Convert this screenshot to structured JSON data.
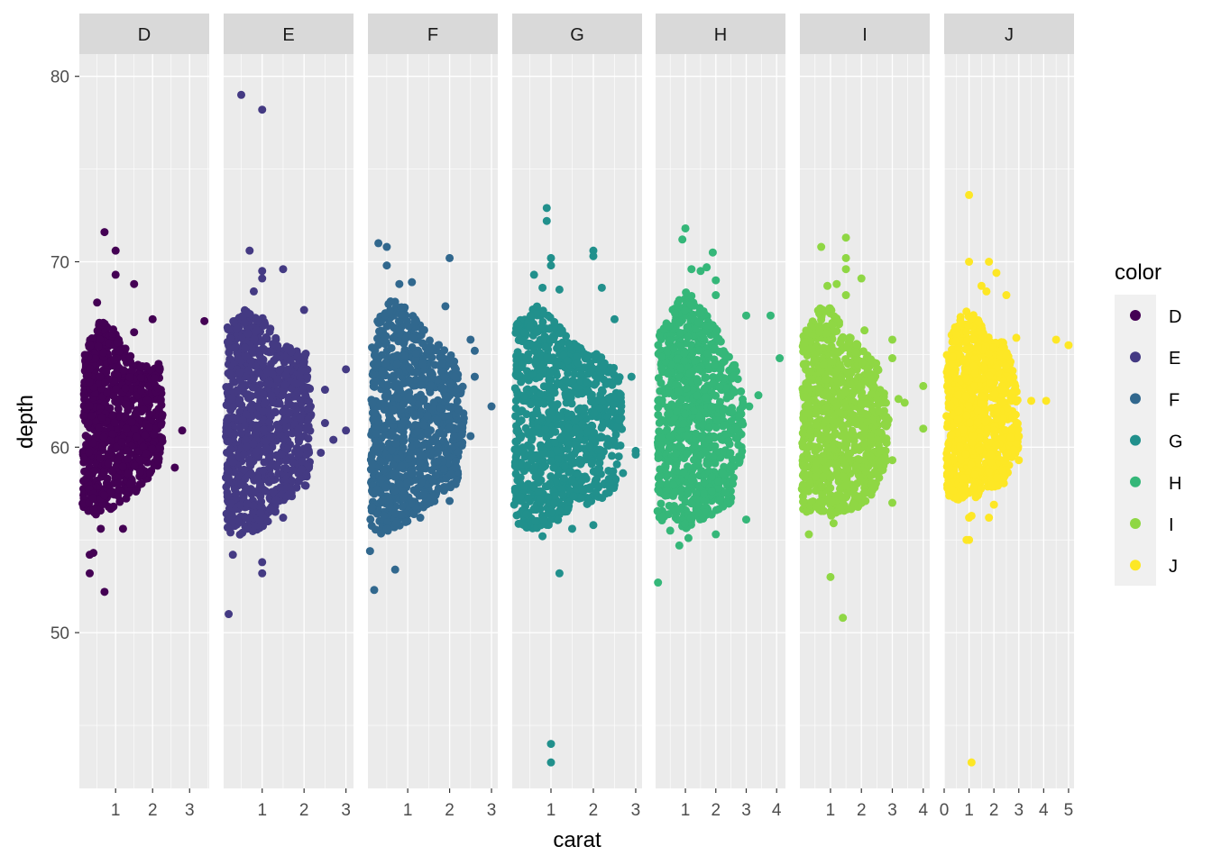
{
  "chart_data": {
    "type": "scatter",
    "facet_by": "color",
    "xlabel": "carat",
    "ylabel": "depth",
    "ylim": [
      41.6,
      81.2
    ],
    "y_ticks": [
      50,
      60,
      70,
      80
    ],
    "grid": true,
    "legend": {
      "title": "color",
      "placement": "right"
    },
    "facets": [
      {
        "label": "D",
        "color": "#440154",
        "xlim": [
          0.02,
          3.53
        ],
        "x_ticks": [
          1,
          2,
          3
        ],
        "core_region": [
          [
            0.1,
            56.5
          ],
          [
            0.15,
            65
          ],
          [
            0.5,
            67
          ],
          [
            0.9,
            66.5
          ],
          [
            1.2,
            65.5
          ],
          [
            1.6,
            64.5
          ],
          [
            2.2,
            64.5
          ],
          [
            2.3,
            61
          ],
          [
            2.2,
            59
          ],
          [
            1.5,
            57.5
          ],
          [
            1.0,
            56.8
          ],
          [
            0.5,
            56.3
          ]
        ],
        "points": [
          [
            0.7,
            71.6
          ],
          [
            1.0,
            70.6
          ],
          [
            1.0,
            69.3
          ],
          [
            1.5,
            68.8
          ],
          [
            2.0,
            66.9
          ],
          [
            3.4,
            66.8
          ],
          [
            2.8,
            60.9
          ],
          [
            2.6,
            58.9
          ],
          [
            0.3,
            54.2
          ],
          [
            0.4,
            54.3
          ],
          [
            0.3,
            53.2
          ],
          [
            0.7,
            52.2
          ],
          [
            0.6,
            55.6
          ],
          [
            1.2,
            55.6
          ],
          [
            0.5,
            67.8
          ],
          [
            1.5,
            66.2
          ]
        ]
      },
      {
        "label": "E",
        "color": "#443A83",
        "xlim": [
          0.08,
          3.18
        ],
        "x_ticks": [
          1,
          2,
          3
        ],
        "core_region": [
          [
            0.12,
            55.5
          ],
          [
            0.15,
            66.5
          ],
          [
            0.6,
            67.5
          ],
          [
            1.0,
            67
          ],
          [
            1.5,
            65.5
          ],
          [
            2.1,
            65
          ],
          [
            2.2,
            61
          ],
          [
            2.1,
            58
          ],
          [
            1.5,
            57
          ],
          [
            1.0,
            55.5
          ],
          [
            0.5,
            55.2
          ]
        ],
        "points": [
          [
            0.5,
            79.0
          ],
          [
            1.0,
            78.2
          ],
          [
            0.7,
            70.6
          ],
          [
            1.0,
            69.5
          ],
          [
            1.0,
            69.1
          ],
          [
            1.5,
            69.6
          ],
          [
            2.0,
            67.4
          ],
          [
            3.0,
            64.2
          ],
          [
            2.5,
            63.1
          ],
          [
            2.5,
            61.3
          ],
          [
            2.7,
            60.4
          ],
          [
            3.0,
            60.9
          ],
          [
            2.4,
            59.7
          ],
          [
            0.2,
            51.0
          ],
          [
            1.0,
            53.2
          ],
          [
            1.0,
            53.8
          ],
          [
            0.3,
            54.2
          ],
          [
            0.6,
            56.2
          ],
          [
            1.5,
            56.2
          ],
          [
            0.8,
            68.4
          ]
        ]
      },
      {
        "label": "F",
        "color": "#31688E",
        "xlim": [
          0.05,
          3.15
        ],
        "x_ticks": [
          1,
          2,
          3
        ],
        "core_region": [
          [
            0.1,
            55.5
          ],
          [
            0.15,
            66.5
          ],
          [
            0.6,
            68
          ],
          [
            1.0,
            67.5
          ],
          [
            1.5,
            66
          ],
          [
            2.3,
            64.5
          ],
          [
            2.35,
            61
          ],
          [
            2.2,
            58
          ],
          [
            1.5,
            56.8
          ],
          [
            1.0,
            56
          ],
          [
            0.5,
            55.2
          ]
        ],
        "points": [
          [
            0.3,
            71.0
          ],
          [
            0.5,
            70.8
          ],
          [
            2.0,
            70.2
          ],
          [
            0.5,
            69.8
          ],
          [
            0.8,
            68.8
          ],
          [
            1.1,
            68.9
          ],
          [
            1.9,
            67.6
          ],
          [
            2.5,
            65.8
          ],
          [
            2.6,
            65.2
          ],
          [
            2.6,
            63.8
          ],
          [
            3.0,
            62.2
          ],
          [
            2.5,
            60.6
          ],
          [
            2.0,
            57.1
          ],
          [
            0.1,
            54.4
          ],
          [
            0.2,
            52.3
          ],
          [
            0.7,
            53.4
          ],
          [
            0.5,
            55.6
          ],
          [
            1.3,
            56.2
          ]
        ]
      },
      {
        "label": "G",
        "color": "#21908C",
        "xlim": [
          0.085,
          3.15
        ],
        "x_ticks": [
          1,
          2,
          3
        ],
        "core_region": [
          [
            0.13,
            56
          ],
          [
            0.15,
            66.5
          ],
          [
            0.6,
            67.8
          ],
          [
            1.0,
            67
          ],
          [
            1.6,
            65.5
          ],
          [
            2.6,
            64.5
          ],
          [
            2.7,
            61
          ],
          [
            2.5,
            57.5
          ],
          [
            1.5,
            56.5
          ],
          [
            1.0,
            55.8
          ],
          [
            0.5,
            55.5
          ]
        ],
        "points": [
          [
            0.9,
            72.9
          ],
          [
            0.9,
            72.2
          ],
          [
            1.0,
            70.2
          ],
          [
            1.0,
            69.8
          ],
          [
            2.0,
            70.6
          ],
          [
            2.0,
            70.3
          ],
          [
            0.6,
            69.3
          ],
          [
            0.8,
            68.6
          ],
          [
            2.2,
            68.6
          ],
          [
            2.5,
            66.9
          ],
          [
            1.2,
            68.5
          ],
          [
            2.9,
            63.8
          ],
          [
            3.0,
            59.8
          ],
          [
            3.0,
            59.6
          ],
          [
            2.6,
            59.5
          ],
          [
            2.7,
            58.6
          ],
          [
            1.2,
            53.2
          ],
          [
            1.0,
            44.0
          ],
          [
            1.0,
            43.0
          ],
          [
            1.5,
            55.6
          ],
          [
            0.8,
            55.2
          ],
          [
            2.0,
            55.8
          ]
        ]
      },
      {
        "label": "H",
        "color": "#35B779",
        "xlim": [
          0.02,
          4.29
        ],
        "x_ticks": [
          1,
          2,
          3,
          4
        ],
        "core_region": [
          [
            0.08,
            56
          ],
          [
            0.1,
            66
          ],
          [
            0.6,
            67.5
          ],
          [
            1.0,
            68.5
          ],
          [
            1.6,
            67.5
          ],
          [
            2.2,
            66
          ],
          [
            2.9,
            63.5
          ],
          [
            2.9,
            60
          ],
          [
            2.5,
            57
          ],
          [
            1.5,
            56
          ],
          [
            1.0,
            55.6
          ],
          [
            0.5,
            56
          ]
        ],
        "points": [
          [
            1.0,
            71.8
          ],
          [
            0.9,
            71.2
          ],
          [
            1.9,
            70.5
          ],
          [
            1.5,
            69.5
          ],
          [
            2.0,
            69.0
          ],
          [
            2.0,
            68.2
          ],
          [
            3.0,
            67.1
          ],
          [
            3.8,
            67.1
          ],
          [
            4.1,
            64.8
          ],
          [
            3.4,
            62.8
          ],
          [
            3.1,
            62.2
          ],
          [
            2.5,
            61.4
          ],
          [
            2.3,
            61.2
          ],
          [
            3.0,
            56.1
          ],
          [
            0.1,
            52.7
          ],
          [
            0.8,
            54.7
          ],
          [
            0.5,
            55.5
          ],
          [
            1.1,
            55.1
          ],
          [
            2.0,
            55.3
          ],
          [
            1.2,
            69.6
          ],
          [
            1.7,
            69.7
          ]
        ]
      },
      {
        "label": "I",
        "color": "#8FD744",
        "xlim": [
          0.01,
          4.21
        ],
        "x_ticks": [
          1,
          2,
          3,
          4
        ],
        "core_region": [
          [
            0.07,
            56.5
          ],
          [
            0.1,
            66
          ],
          [
            0.6,
            67.5
          ],
          [
            1.0,
            67.5
          ],
          [
            1.6,
            66
          ],
          [
            2.5,
            64.5
          ],
          [
            2.9,
            62
          ],
          [
            2.8,
            59
          ],
          [
            2.2,
            57
          ],
          [
            1.5,
            56.5
          ],
          [
            1.0,
            56.2
          ],
          [
            0.5,
            56.5
          ]
        ],
        "points": [
          [
            1.5,
            71.3
          ],
          [
            0.7,
            70.8
          ],
          [
            1.5,
            70.2
          ],
          [
            1.5,
            69.6
          ],
          [
            2.0,
            69.1
          ],
          [
            0.9,
            68.7
          ],
          [
            1.2,
            68.8
          ],
          [
            1.5,
            68.2
          ],
          [
            2.1,
            66.3
          ],
          [
            3.0,
            65.8
          ],
          [
            3.0,
            64.8
          ],
          [
            2.5,
            64.2
          ],
          [
            3.2,
            62.6
          ],
          [
            3.4,
            62.4
          ],
          [
            4.0,
            63.3
          ],
          [
            4.0,
            61.0
          ],
          [
            3.0,
            59.3
          ],
          [
            3.0,
            57.0
          ],
          [
            1.0,
            53.0
          ],
          [
            1.4,
            50.8
          ],
          [
            0.3,
            55.3
          ],
          [
            1.1,
            55.9
          ],
          [
            1.0,
            56.5
          ]
        ]
      },
      {
        "label": "J",
        "color": "#FDE725",
        "xlim": [
          0,
          5.22
        ],
        "x_ticks": [
          0,
          1,
          2,
          3,
          4,
          5
        ],
        "core_region": [
          [
            0.07,
            57.2
          ],
          [
            0.1,
            65.5
          ],
          [
            0.6,
            67
          ],
          [
            1.0,
            67.5
          ],
          [
            1.6,
            66.5
          ],
          [
            2.5,
            65.5
          ],
          [
            3.0,
            63
          ],
          [
            3.0,
            60
          ],
          [
            2.5,
            58
          ],
          [
            1.5,
            57.5
          ],
          [
            1.0,
            57
          ],
          [
            0.5,
            57.2
          ]
        ],
        "points": [
          [
            1.0,
            73.6
          ],
          [
            1.0,
            70.0
          ],
          [
            1.8,
            70.0
          ],
          [
            2.1,
            69.4
          ],
          [
            1.5,
            68.7
          ],
          [
            1.7,
            68.4
          ],
          [
            2.5,
            68.2
          ],
          [
            2.9,
            65.9
          ],
          [
            4.5,
            65.8
          ],
          [
            5.0,
            65.5
          ],
          [
            3.5,
            62.5
          ],
          [
            4.1,
            62.5
          ],
          [
            3.0,
            60.6
          ],
          [
            3.0,
            59.3
          ],
          [
            2.0,
            56.9
          ],
          [
            1.8,
            56.2
          ],
          [
            1.0,
            56.2
          ],
          [
            1.1,
            56.3
          ],
          [
            0.9,
            55.0
          ],
          [
            1.0,
            55.0
          ],
          [
            1.1,
            43.0
          ]
        ]
      }
    ]
  }
}
